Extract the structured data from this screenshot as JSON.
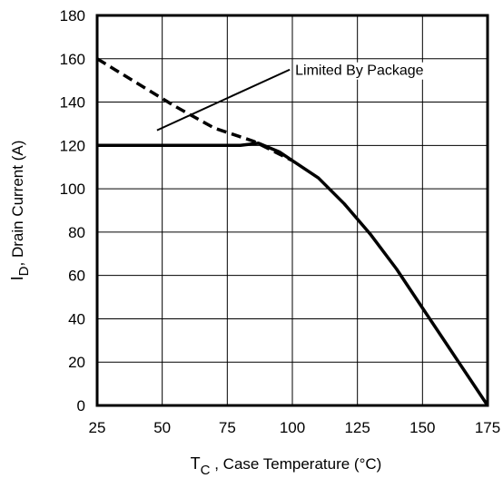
{
  "chart_data": {
    "type": "line",
    "title": "",
    "xlabel_main": "T",
    "xlabel_sub": "C",
    "xlabel_rest": " , Case Temperature (°C)",
    "ylabel_main": "I",
    "ylabel_sub": "D",
    "ylabel_rest": ",  Drain Current (A)",
    "xlim": [
      25,
      175
    ],
    "ylim": [
      0,
      180
    ],
    "x_ticks": [
      25,
      50,
      75,
      100,
      125,
      150,
      175
    ],
    "y_ticks": [
      0,
      20,
      40,
      60,
      80,
      100,
      120,
      140,
      160,
      180
    ],
    "grid": true,
    "annotation": {
      "text": "Limited By Package",
      "points_to": {
        "x": 48,
        "y": 127
      },
      "anchor": {
        "x": 99,
        "y": 155
      }
    },
    "series": [
      {
        "style": "dashed",
        "x": [
          25,
          40,
          55,
          70,
          85,
          90,
          95,
          100
        ],
        "y": [
          160,
          149,
          138,
          128,
          122,
          119,
          116,
          113
        ]
      },
      {
        "style": "solid",
        "x": [
          25,
          80,
          87,
          95,
          100,
          110,
          120,
          130,
          140,
          150,
          160,
          170,
          175
        ],
        "y": [
          120,
          120,
          121,
          117,
          113,
          105,
          93,
          79,
          63,
          45,
          27,
          9,
          0
        ]
      }
    ],
    "colors": {
      "line": "#000000",
      "grid": "#000000",
      "background": "#ffffff"
    }
  }
}
